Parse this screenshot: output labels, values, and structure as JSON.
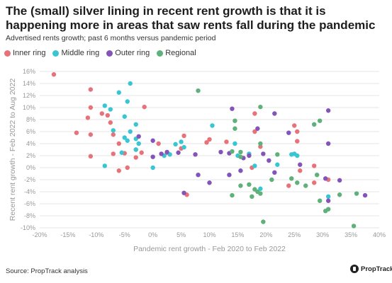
{
  "chart_data": {
    "type": "scatter",
    "title": "The (small) silver lining in recent rent growth is that it is happening more in areas that saw rents fall during the pandemic",
    "subtitle": "Advertised rents growth; past 6 months versus pandemic period",
    "xlabel": "Pandemic rent growth - Feb 2020 to Feb 2022",
    "ylabel": "Recent rent growth - Feb 2022 to Aug 2022",
    "xlim": [
      -20,
      40
    ],
    "ylim": [
      -10,
      16
    ],
    "x_ticks": [
      -20,
      -15,
      -10,
      -5,
      0,
      5,
      10,
      15,
      20,
      25,
      30,
      35,
      40
    ],
    "y_ticks": [
      -10,
      -8,
      -6,
      -4,
      -2,
      0,
      2,
      4,
      6,
      8,
      10,
      12,
      14,
      16
    ],
    "tick_format": "percent",
    "grid": "horizontal",
    "legend_position": "top-left",
    "series": [
      {
        "name": "Inner ring",
        "color": "#e8727a",
        "points": [
          [
            -17.5,
            15.5
          ],
          [
            -11,
            13
          ],
          [
            -11,
            10
          ],
          [
            -11.5,
            8.3
          ],
          [
            -9,
            9
          ],
          [
            -8,
            8.7
          ],
          [
            -11,
            5.5
          ],
          [
            -13.5,
            5.8
          ],
          [
            -7.5,
            7.5
          ],
          [
            -1.5,
            10.1
          ],
          [
            -7,
            5.5
          ],
          [
            -6,
            4
          ],
          [
            -11,
            1.9
          ],
          [
            -7,
            2.3
          ],
          [
            -5,
            2.4
          ],
          [
            -3,
            3
          ],
          [
            -2,
            2.5
          ],
          [
            -6,
            -0.5
          ],
          [
            -4.5,
            0
          ],
          [
            -3,
            1.7
          ],
          [
            1,
            4
          ],
          [
            2.5,
            2.5
          ],
          [
            5.5,
            5.3
          ],
          [
            5,
            3.2
          ],
          [
            6,
            -4.5
          ],
          [
            9.5,
            4.2
          ],
          [
            10,
            4.7
          ],
          [
            13,
            4.3
          ],
          [
            18,
            9
          ],
          [
            18,
            6
          ],
          [
            19,
            3.5
          ],
          [
            17.5,
            0
          ],
          [
            25,
            7
          ],
          [
            25.5,
            6
          ],
          [
            25.5,
            4.4
          ],
          [
            26,
            -0.5
          ],
          [
            24,
            -3
          ],
          [
            28.5,
            0.3
          ],
          [
            28.5,
            -2.5
          ],
          [
            31,
            -2
          ]
        ]
      },
      {
        "name": "Middle ring",
        "color": "#39c6d3",
        "points": [
          [
            -4,
            14
          ],
          [
            -6,
            12.5
          ],
          [
            -4.5,
            11
          ],
          [
            -8.5,
            10.3
          ],
          [
            -7.5,
            9.7
          ],
          [
            -5,
            8.5
          ],
          [
            -3,
            7.2
          ],
          [
            -7,
            6.2
          ],
          [
            -4,
            6
          ],
          [
            -5,
            5
          ],
          [
            -4.5,
            4.5
          ],
          [
            -3,
            4.8
          ],
          [
            -2.5,
            4
          ],
          [
            -3,
            3
          ],
          [
            -5.5,
            2.5
          ],
          [
            -8.5,
            0.3
          ],
          [
            0,
            0
          ],
          [
            2,
            2
          ],
          [
            3,
            2.2
          ],
          [
            4,
            3.9
          ],
          [
            5,
            4.3
          ],
          [
            5.5,
            3.4
          ],
          [
            10.5,
            7
          ],
          [
            14.5,
            4
          ],
          [
            15,
            2
          ],
          [
            17,
            2.3
          ],
          [
            18,
            0.3
          ],
          [
            22,
            0.5
          ],
          [
            19,
            -3.5
          ],
          [
            24.5,
            2.2
          ],
          [
            25,
            2.3
          ],
          [
            25.5,
            2
          ],
          [
            31,
            -4.8
          ]
        ]
      },
      {
        "name": "Outer ring",
        "color": "#8454b8",
        "points": [
          [
            -2.5,
            5.2
          ],
          [
            0,
            4.5
          ],
          [
            2.5,
            2.6
          ],
          [
            4.5,
            2.5
          ],
          [
            1.5,
            2.3
          ],
          [
            0,
            1.8
          ],
          [
            5.5,
            -4.2
          ],
          [
            7.5,
            2.2
          ],
          [
            8,
            -1.2
          ],
          [
            10,
            -2.5
          ],
          [
            12,
            2.6
          ],
          [
            13.5,
            2.4
          ],
          [
            14,
            9.8
          ],
          [
            16,
            1.6
          ],
          [
            13.5,
            -1.2
          ],
          [
            15.5,
            -0.5
          ],
          [
            17,
            2
          ],
          [
            18.5,
            6.5
          ],
          [
            19.5,
            2.3
          ],
          [
            21.5,
            9
          ],
          [
            20.5,
            1.2
          ],
          [
            21.5,
            -0.8
          ],
          [
            24,
            5.8
          ],
          [
            26,
            0.5
          ],
          [
            30.5,
            -1.8
          ],
          [
            31,
            9.5
          ],
          [
            31,
            4
          ],
          [
            31,
            -5.5
          ],
          [
            33,
            -2.1
          ],
          [
            37.5,
            -4.6
          ]
        ]
      },
      {
        "name": "Regional",
        "color": "#5fb07a",
        "points": [
          [
            8,
            12.8
          ],
          [
            19,
            10.1
          ],
          [
            14.5,
            7.8
          ],
          [
            14.5,
            6.5
          ],
          [
            15.5,
            2.6
          ],
          [
            15.5,
            1.8
          ],
          [
            19,
            4
          ],
          [
            14,
            2.7
          ],
          [
            14,
            -4.6
          ],
          [
            15.5,
            -3
          ],
          [
            17,
            -2.8
          ],
          [
            18,
            -3.6
          ],
          [
            18.5,
            -4
          ],
          [
            17.5,
            -4.8
          ],
          [
            19,
            -4.3
          ],
          [
            21,
            -2
          ],
          [
            19.5,
            -9
          ],
          [
            22,
            2.2
          ],
          [
            24.5,
            -1.8
          ],
          [
            25.5,
            -2.5
          ],
          [
            27,
            -3
          ],
          [
            28.5,
            7.2
          ],
          [
            29,
            -1.2
          ],
          [
            29.5,
            7.8
          ],
          [
            29.5,
            -5.5
          ],
          [
            30.5,
            -7.2
          ],
          [
            31,
            -6.9
          ],
          [
            33,
            -4.5
          ],
          [
            35.5,
            -9.7
          ],
          [
            36,
            -4.3
          ]
        ]
      }
    ]
  },
  "footer": {
    "source": "Source: PropTrack analysis",
    "brand": "PropTrack"
  }
}
